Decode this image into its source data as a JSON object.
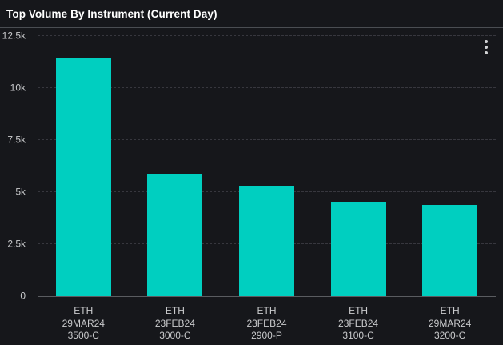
{
  "panel": {
    "title": "Top Volume By Instrument (Current Day)"
  },
  "colors": {
    "background": "#16171b",
    "bar": "#00cfc0",
    "title_text": "#ffffff",
    "axis_text": "#c9cacc",
    "gridline": "rgba(204,204,220,0.18)",
    "baseline": "#5a5c60",
    "header_divider": "#4a4d52",
    "kebab_dots": "#d2d3d5"
  },
  "chart_data": {
    "type": "bar",
    "title": "Top Volume By Instrument (Current Day)",
    "categories": [
      [
        "ETH",
        "29MAR24",
        "3500-C"
      ],
      [
        "ETH",
        "23FEB24",
        "3000-C"
      ],
      [
        "ETH",
        "23FEB24",
        "2900-P"
      ],
      [
        "ETH",
        "23FEB24",
        "3100-C"
      ],
      [
        "ETH",
        "29MAR24",
        "3200-C"
      ]
    ],
    "values": [
      11480,
      5890,
      5310,
      4540,
      4380
    ],
    "xlabel": "",
    "ylabel": "",
    "ylim": [
      0,
      12500
    ],
    "yticks": [
      0,
      2500,
      5000,
      7500,
      10000,
      12500
    ],
    "ytick_labels": [
      "0",
      "2.5k",
      "5k",
      "7.5k",
      "10k",
      "12.5k"
    ],
    "grid": "horizontal-dashed",
    "legend": "none",
    "bar_color": "#00cfc0"
  }
}
